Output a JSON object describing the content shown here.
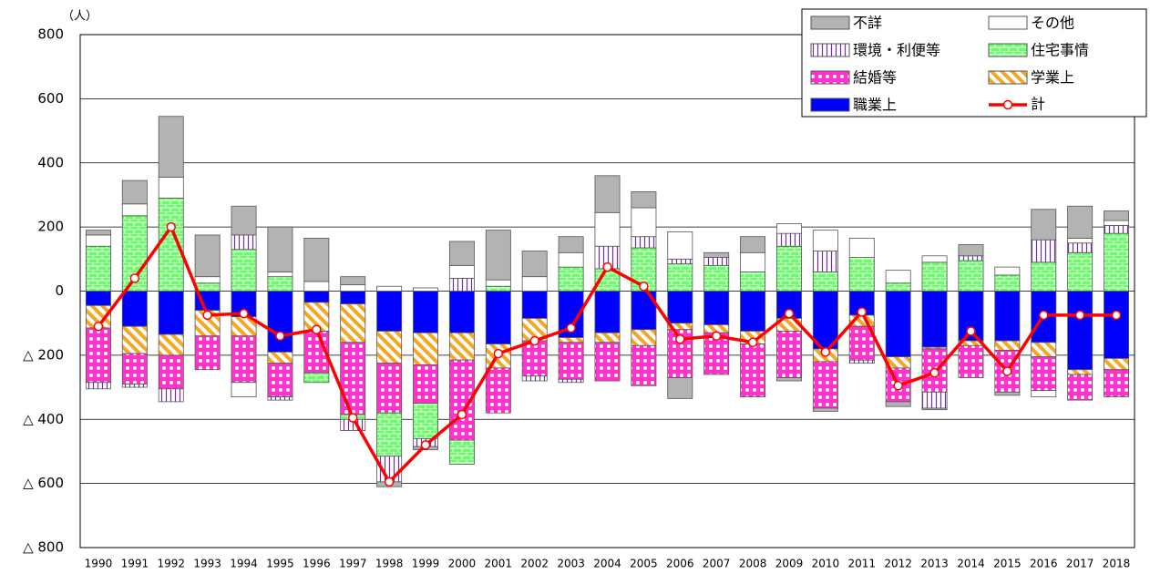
{
  "chart_data": {
    "type": "stacked_bar_line",
    "y_label": "（人）",
    "categories": [
      "1990",
      "1991",
      "1992",
      "1993",
      "1994",
      "1995",
      "1996",
      "1997",
      "1998",
      "1999",
      "2000",
      "2001",
      "2002",
      "2003",
      "2004",
      "2005",
      "2006",
      "2007",
      "2008",
      "2009",
      "2010",
      "2011",
      "2012",
      "2013",
      "2014",
      "2015",
      "2016",
      "2017",
      "2018"
    ],
    "ylim": [
      -800,
      800
    ],
    "yticks": [
      {
        "value": -800,
        "label": "△ 800"
      },
      {
        "value": -600,
        "label": "△ 600"
      },
      {
        "value": -400,
        "label": "△ 400"
      },
      {
        "value": -200,
        "label": "△ 200"
      },
      0,
      200,
      400,
      600,
      800
    ],
    "grid": true,
    "legend": "upper right",
    "series": [
      {
        "name": "職業上",
        "color": "#0000ff",
        "values": [
          -45,
          -110,
          -135,
          -60,
          -80,
          -190,
          -35,
          -40,
          -125,
          -130,
          -130,
          -165,
          -85,
          -145,
          -130,
          -120,
          -100,
          -105,
          -125,
          -85,
          -180,
          -75,
          -205,
          -175,
          -155,
          -155,
          -160,
          -245,
          -210
        ]
      },
      {
        "name": "学業上",
        "color": "#f5a623",
        "values": [
          -70,
          -85,
          -65,
          -80,
          -60,
          -35,
          -90,
          -120,
          -100,
          -100,
          -85,
          -75,
          -70,
          -15,
          -30,
          -50,
          -20,
          -25,
          -40,
          -40,
          -40,
          -35,
          -35,
          -5,
          -15,
          -30,
          -45,
          -15,
          -35
        ]
      },
      {
        "name": "結婚等",
        "color": "#ff33cc",
        "values": [
          -170,
          -95,
          -105,
          -105,
          -145,
          -105,
          -130,
          -225,
          -155,
          -120,
          -250,
          -140,
          -110,
          -115,
          -120,
          -125,
          -150,
          -130,
          -165,
          -145,
          -145,
          -105,
          -105,
          -135,
          -100,
          -130,
          -105,
          -80,
          -85
        ]
      },
      {
        "name": "住宅事情",
        "color": "#66ff66",
        "values": [
          140,
          235,
          290,
          25,
          130,
          45,
          -30,
          -15,
          -135,
          -110,
          -75,
          15,
          0,
          75,
          70,
          135,
          85,
          80,
          60,
          140,
          60,
          105,
          25,
          90,
          95,
          50,
          90,
          120,
          180
        ]
      },
      {
        "name": "環境・利便等",
        "color": "#7030a0",
        "values": [
          -20,
          -10,
          -40,
          0,
          45,
          -10,
          0,
          -35,
          -80,
          -25,
          40,
          0,
          -15,
          -10,
          70,
          35,
          15,
          25,
          0,
          40,
          65,
          -10,
          0,
          -50,
          15,
          0,
          70,
          30,
          25
        ]
      },
      {
        "name": "その他",
        "color": "#ffffff",
        "values": [
          35,
          37,
          65,
          20,
          -45,
          15,
          30,
          20,
          15,
          10,
          40,
          20,
          45,
          45,
          105,
          90,
          85,
          0,
          60,
          30,
          65,
          60,
          40,
          20,
          0,
          25,
          -20,
          15,
          15
        ]
      },
      {
        "name": "不詳",
        "color": "#b3b3b3",
        "values": [
          15,
          73,
          190,
          130,
          90,
          140,
          135,
          25,
          -15,
          -10,
          75,
          155,
          80,
          50,
          115,
          50,
          -65,
          15,
          50,
          -10,
          -10,
          0,
          -15,
          -5,
          35,
          -10,
          95,
          100,
          30
        ]
      }
    ],
    "line": {
      "name": "計",
      "color": "#ff0000",
      "values": [
        -110,
        40,
        200,
        -75,
        -70,
        -140,
        -120,
        -395,
        -595,
        -480,
        -385,
        -195,
        -155,
        -115,
        75,
        15,
        -150,
        -140,
        -160,
        -70,
        -190,
        -65,
        -295,
        -255,
        -125,
        -250,
        -75,
        -75,
        -75
      ]
    }
  }
}
